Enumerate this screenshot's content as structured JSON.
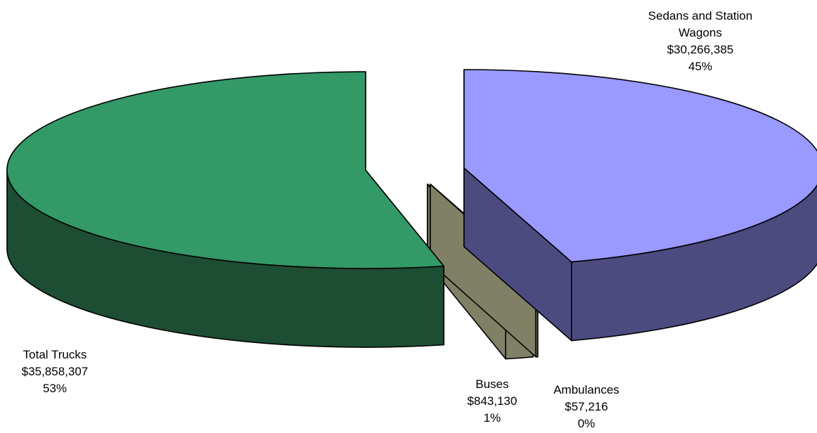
{
  "chart_data": {
    "type": "pie",
    "style": "3d-exploded",
    "title": "",
    "slices": [
      {
        "label": "Sedans and Station Wagons",
        "label_lines": [
          "Sedans and Station",
          "Wagons"
        ],
        "value": 30266385,
        "value_text": "$30,266,385",
        "percent_text": "45%",
        "top_color": "#9999ff",
        "side_color": "#4b4b80"
      },
      {
        "label": "Ambulances",
        "label_lines": [
          "Ambulances"
        ],
        "value": 57216,
        "value_text": "$57,216",
        "percent_text": "0%",
        "top_color": "#ffffcc",
        "side_color": "#808066"
      },
      {
        "label": "Buses",
        "label_lines": [
          "Buses"
        ],
        "value": 843130,
        "value_text": "$843,130",
        "percent_text": "1%",
        "top_color": "#fffde0",
        "side_color": "#808066"
      },
      {
        "label": "Total Trucks",
        "label_lines": [
          "Total Trucks"
        ],
        "value": 35858307,
        "value_text": "$35,858,307",
        "percent_text": "53%",
        "top_color": "#339966",
        "side_color": "#1d4d33"
      }
    ],
    "legend": "none"
  }
}
